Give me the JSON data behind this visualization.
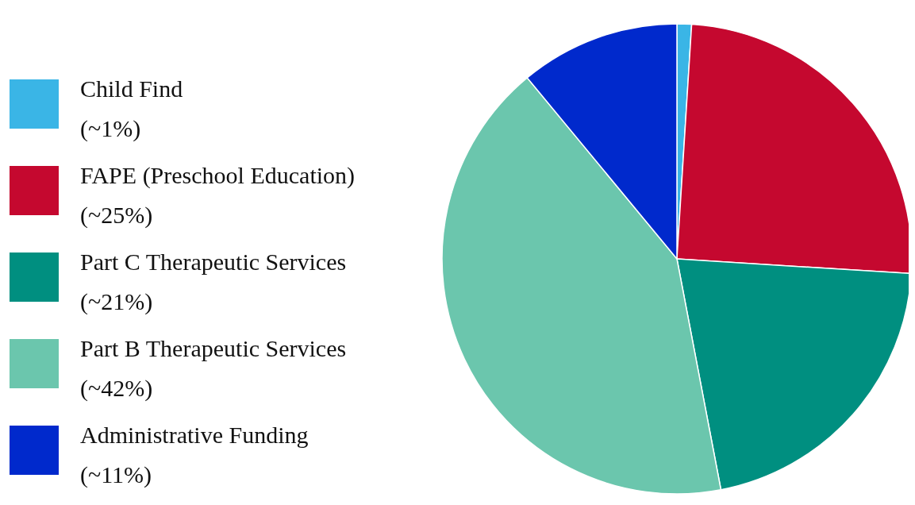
{
  "chart_data": {
    "type": "pie",
    "categories": [
      "Child Find",
      "FAPE (Preschool Education)",
      "Part C Therapeutic Services",
      "Part B Therapeutic Services",
      "Administrative Funding"
    ],
    "values": [
      1,
      25,
      21,
      42,
      11
    ],
    "value_labels": [
      "(~1%)",
      "(~25%)",
      "(~21%)",
      "(~42%)",
      "(~11%)"
    ],
    "colors": [
      "#3ab5e6",
      "#c5082f",
      "#008f80",
      "#6bc6ad",
      "#0029cc"
    ],
    "legend": "left"
  }
}
